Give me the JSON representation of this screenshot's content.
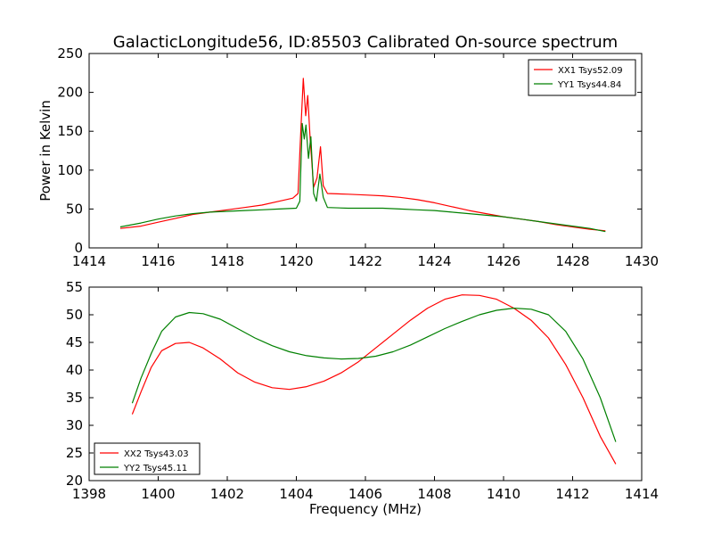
{
  "figure": {
    "title": "GalacticLongitude56, ID:85503 Calibrated On-source spectrum"
  },
  "chart_data": [
    {
      "type": "line",
      "title": "GalacticLongitude56, ID:85503 Calibrated On-source spectrum",
      "xlabel": "",
      "ylabel": "Power in Kelvin",
      "xlim": [
        1414,
        1430
      ],
      "ylim": [
        0,
        250
      ],
      "xticks": [
        "1414",
        "1416",
        "1418",
        "1420",
        "1422",
        "1424",
        "1426",
        "1428",
        "1430"
      ],
      "yticks": [
        "0",
        "50",
        "100",
        "150",
        "200",
        "250"
      ],
      "legend_position": "top-right",
      "grid": false,
      "series": [
        {
          "name": "XX1 Tsys52.09",
          "color": "#ff0000",
          "points": [
            [
              1414.9,
              25
            ],
            [
              1415.5,
              28
            ],
            [
              1416,
              33
            ],
            [
              1416.5,
              38
            ],
            [
              1417,
              43
            ],
            [
              1417.5,
              46
            ],
            [
              1418,
              49
            ],
            [
              1418.5,
              52
            ],
            [
              1419,
              55
            ],
            [
              1419.5,
              60
            ],
            [
              1419.9,
              64
            ],
            [
              1420.05,
              70
            ],
            [
              1420.13,
              150
            ],
            [
              1420.2,
              218
            ],
            [
              1420.27,
              170
            ],
            [
              1420.33,
              196
            ],
            [
              1420.4,
              140
            ],
            [
              1420.5,
              78
            ],
            [
              1420.6,
              90
            ],
            [
              1420.7,
              130
            ],
            [
              1420.78,
              80
            ],
            [
              1420.9,
              70
            ],
            [
              1421.5,
              69
            ],
            [
              1422,
              68
            ],
            [
              1422.5,
              67
            ],
            [
              1423,
              65
            ],
            [
              1423.5,
              62
            ],
            [
              1424,
              58
            ],
            [
              1424.5,
              53
            ],
            [
              1425,
              48
            ],
            [
              1425.5,
              44
            ],
            [
              1426,
              40
            ],
            [
              1426.5,
              37
            ],
            [
              1427,
              34
            ],
            [
              1427.5,
              30
            ],
            [
              1428,
              27
            ],
            [
              1428.5,
              24
            ],
            [
              1428.95,
              22
            ]
          ]
        },
        {
          "name": "YY1 Tsys44.84",
          "color": "#008000",
          "points": [
            [
              1414.9,
              27
            ],
            [
              1415.5,
              32
            ],
            [
              1416,
              37
            ],
            [
              1416.5,
              41
            ],
            [
              1417,
              44
            ],
            [
              1417.5,
              46
            ],
            [
              1418,
              47
            ],
            [
              1418.5,
              48
            ],
            [
              1419,
              49
            ],
            [
              1419.5,
              50
            ],
            [
              1420,
              51
            ],
            [
              1420.1,
              60
            ],
            [
              1420.17,
              160
            ],
            [
              1420.23,
              140
            ],
            [
              1420.28,
              158
            ],
            [
              1420.35,
              115
            ],
            [
              1420.42,
              143
            ],
            [
              1420.5,
              70
            ],
            [
              1420.58,
              60
            ],
            [
              1420.68,
              95
            ],
            [
              1420.78,
              65
            ],
            [
              1420.9,
              52
            ],
            [
              1421.5,
              51
            ],
            [
              1422,
              51
            ],
            [
              1422.5,
              51
            ],
            [
              1423,
              50
            ],
            [
              1423.5,
              49
            ],
            [
              1424,
              48
            ],
            [
              1424.5,
              46
            ],
            [
              1425,
              44
            ],
            [
              1425.5,
              42
            ],
            [
              1426,
              40
            ],
            [
              1426.5,
              37
            ],
            [
              1427,
              34
            ],
            [
              1427.5,
              31
            ],
            [
              1428,
              28
            ],
            [
              1428.5,
              25
            ],
            [
              1428.95,
              21
            ]
          ]
        }
      ]
    },
    {
      "type": "line",
      "title": "",
      "xlabel": "Frequency (MHz)",
      "ylabel": "",
      "xlim": [
        1398,
        1414
      ],
      "ylim": [
        20,
        55
      ],
      "xticks": [
        "1398",
        "1400",
        "1402",
        "1404",
        "1406",
        "1408",
        "1410",
        "1412",
        "1414"
      ],
      "yticks": [
        "20",
        "25",
        "30",
        "35",
        "40",
        "45",
        "50",
        "55"
      ],
      "legend_position": "bottom-left",
      "grid": false,
      "series": [
        {
          "name": "XX2 Tsys43.03",
          "color": "#ff0000",
          "points": [
            [
              1399.25,
              32
            ],
            [
              1399.5,
              36
            ],
            [
              1399.8,
              40.5
            ],
            [
              1400.1,
              43.5
            ],
            [
              1400.5,
              44.8
            ],
            [
              1400.9,
              45
            ],
            [
              1401.3,
              44
            ],
            [
              1401.8,
              42
            ],
            [
              1402.3,
              39.5
            ],
            [
              1402.8,
              37.8
            ],
            [
              1403.3,
              36.8
            ],
            [
              1403.8,
              36.5
            ],
            [
              1404.3,
              37
            ],
            [
              1404.8,
              38
            ],
            [
              1405.3,
              39.5
            ],
            [
              1405.8,
              41.5
            ],
            [
              1406.3,
              44
            ],
            [
              1406.8,
              46.5
            ],
            [
              1407.3,
              49
            ],
            [
              1407.8,
              51.2
            ],
            [
              1408.3,
              52.8
            ],
            [
              1408.8,
              53.6
            ],
            [
              1409.3,
              53.5
            ],
            [
              1409.8,
              52.8
            ],
            [
              1410.3,
              51.2
            ],
            [
              1410.8,
              49
            ],
            [
              1411.3,
              45.8
            ],
            [
              1411.8,
              41
            ],
            [
              1412.3,
              35
            ],
            [
              1412.8,
              28
            ],
            [
              1413.25,
              23
            ]
          ]
        },
        {
          "name": "YY2 Tsys45.11",
          "color": "#008000",
          "points": [
            [
              1399.25,
              34
            ],
            [
              1399.5,
              38.5
            ],
            [
              1399.8,
              43
            ],
            [
              1400.1,
              47
            ],
            [
              1400.5,
              49.6
            ],
            [
              1400.9,
              50.4
            ],
            [
              1401.3,
              50.2
            ],
            [
              1401.8,
              49.2
            ],
            [
              1402.3,
              47.5
            ],
            [
              1402.8,
              45.8
            ],
            [
              1403.3,
              44.4
            ],
            [
              1403.8,
              43.3
            ],
            [
              1404.3,
              42.6
            ],
            [
              1404.8,
              42.2
            ],
            [
              1405.3,
              42
            ],
            [
              1405.8,
              42.1
            ],
            [
              1406.3,
              42.5
            ],
            [
              1406.8,
              43.3
            ],
            [
              1407.3,
              44.5
            ],
            [
              1407.8,
              46
            ],
            [
              1408.3,
              47.5
            ],
            [
              1408.8,
              48.8
            ],
            [
              1409.3,
              50
            ],
            [
              1409.8,
              50.8
            ],
            [
              1410.3,
              51.2
            ],
            [
              1410.8,
              51
            ],
            [
              1411.3,
              50
            ],
            [
              1411.8,
              47
            ],
            [
              1412.3,
              42
            ],
            [
              1412.8,
              35
            ],
            [
              1413.25,
              27
            ]
          ]
        }
      ]
    }
  ]
}
